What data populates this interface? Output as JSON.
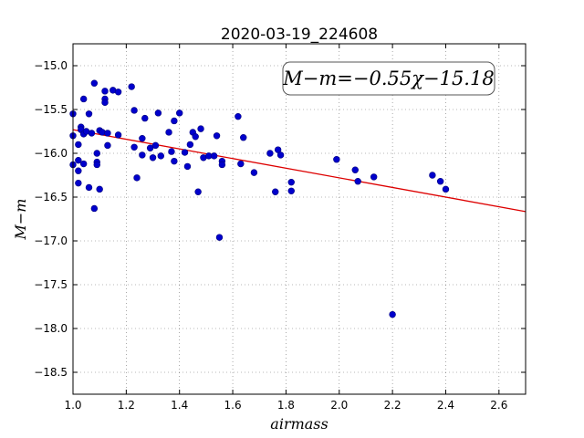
{
  "chart_data": {
    "type": "scatter",
    "title": "2020-03-19_224608",
    "xlabel": "airmass",
    "ylabel": "M−m",
    "xlim": [
      1.0,
      2.7
    ],
    "ylim": [
      -18.75,
      -14.75
    ],
    "x_ticks": [
      1.0,
      1.2,
      1.4,
      1.6,
      1.8,
      2.0,
      2.2,
      2.4,
      2.6
    ],
    "x_tick_labels": [
      "1.0",
      "1.2",
      "1.4",
      "1.6",
      "1.8",
      "2.0",
      "2.2",
      "2.4",
      "2.6"
    ],
    "y_ticks": [
      -15.0,
      -15.5,
      -16.0,
      -16.5,
      -17.0,
      -17.5,
      -18.0,
      -18.5
    ],
    "y_tick_labels": [
      "−15.0",
      "−15.5",
      "−16.0",
      "−16.5",
      "−17.0",
      "−17.5",
      "−18.0",
      "−18.5"
    ],
    "grid": true,
    "annotation": "M−m=−0.55χ−15.18",
    "colors": {
      "points": "#0000cc",
      "fit_line": "#dd0000"
    },
    "fit_line": {
      "slope": -0.55,
      "intercept": -15.18
    },
    "points": [
      {
        "x": 1.0,
        "y": -15.55
      },
      {
        "x": 1.0,
        "y": -15.8
      },
      {
        "x": 1.0,
        "y": -16.13
      },
      {
        "x": 1.02,
        "y": -15.9
      },
      {
        "x": 1.02,
        "y": -16.08
      },
      {
        "x": 1.02,
        "y": -16.2
      },
      {
        "x": 1.02,
        "y": -16.34
      },
      {
        "x": 1.03,
        "y": -15.7
      },
      {
        "x": 1.03,
        "y": -15.73
      },
      {
        "x": 1.04,
        "y": -15.38
      },
      {
        "x": 1.04,
        "y": -15.78
      },
      {
        "x": 1.04,
        "y": -16.12
      },
      {
        "x": 1.05,
        "y": -15.75
      },
      {
        "x": 1.06,
        "y": -15.55
      },
      {
        "x": 1.06,
        "y": -16.39
      },
      {
        "x": 1.07,
        "y": -15.77
      },
      {
        "x": 1.08,
        "y": -16.63
      },
      {
        "x": 1.08,
        "y": -15.2
      },
      {
        "x": 1.09,
        "y": -16.0
      },
      {
        "x": 1.09,
        "y": -16.1
      },
      {
        "x": 1.09,
        "y": -16.13
      },
      {
        "x": 1.1,
        "y": -16.41
      },
      {
        "x": 1.1,
        "y": -15.74
      },
      {
        "x": 1.11,
        "y": -15.76
      },
      {
        "x": 1.12,
        "y": -15.29
      },
      {
        "x": 1.12,
        "y": -15.38
      },
      {
        "x": 1.12,
        "y": -15.42
      },
      {
        "x": 1.13,
        "y": -15.77
      },
      {
        "x": 1.13,
        "y": -15.91
      },
      {
        "x": 1.15,
        "y": -15.28
      },
      {
        "x": 1.17,
        "y": -15.3
      },
      {
        "x": 1.17,
        "y": -15.79
      },
      {
        "x": 1.22,
        "y": -15.24
      },
      {
        "x": 1.23,
        "y": -15.51
      },
      {
        "x": 1.23,
        "y": -15.93
      },
      {
        "x": 1.24,
        "y": -16.28
      },
      {
        "x": 1.26,
        "y": -16.02
      },
      {
        "x": 1.26,
        "y": -15.83
      },
      {
        "x": 1.27,
        "y": -15.6
      },
      {
        "x": 1.29,
        "y": -15.94
      },
      {
        "x": 1.3,
        "y": -16.05
      },
      {
        "x": 1.31,
        "y": -15.91
      },
      {
        "x": 1.32,
        "y": -15.54
      },
      {
        "x": 1.33,
        "y": -16.03
      },
      {
        "x": 1.36,
        "y": -15.76
      },
      {
        "x": 1.37,
        "y": -15.98
      },
      {
        "x": 1.38,
        "y": -16.09
      },
      {
        "x": 1.38,
        "y": -15.63
      },
      {
        "x": 1.4,
        "y": -15.54
      },
      {
        "x": 1.42,
        "y": -15.99
      },
      {
        "x": 1.43,
        "y": -16.15
      },
      {
        "x": 1.44,
        "y": -15.9
      },
      {
        "x": 1.45,
        "y": -15.76
      },
      {
        "x": 1.46,
        "y": -15.81
      },
      {
        "x": 1.47,
        "y": -16.44
      },
      {
        "x": 1.48,
        "y": -15.72
      },
      {
        "x": 1.49,
        "y": -16.05
      },
      {
        "x": 1.51,
        "y": -16.03
      },
      {
        "x": 1.53,
        "y": -16.03
      },
      {
        "x": 1.54,
        "y": -15.8
      },
      {
        "x": 1.55,
        "y": -16.96
      },
      {
        "x": 1.56,
        "y": -16.09
      },
      {
        "x": 1.56,
        "y": -16.13
      },
      {
        "x": 1.62,
        "y": -15.58
      },
      {
        "x": 1.63,
        "y": -16.12
      },
      {
        "x": 1.64,
        "y": -15.82
      },
      {
        "x": 1.68,
        "y": -16.22
      },
      {
        "x": 1.74,
        "y": -16.0
      },
      {
        "x": 1.76,
        "y": -16.44
      },
      {
        "x": 1.77,
        "y": -15.96
      },
      {
        "x": 1.78,
        "y": -16.02
      },
      {
        "x": 1.82,
        "y": -16.33
      },
      {
        "x": 1.82,
        "y": -16.43
      },
      {
        "x": 1.99,
        "y": -16.07
      },
      {
        "x": 2.06,
        "y": -16.19
      },
      {
        "x": 2.07,
        "y": -16.32
      },
      {
        "x": 2.13,
        "y": -16.27
      },
      {
        "x": 2.2,
        "y": -17.84
      },
      {
        "x": 2.35,
        "y": -16.25
      },
      {
        "x": 2.38,
        "y": -16.32
      },
      {
        "x": 2.4,
        "y": -16.41
      }
    ]
  }
}
